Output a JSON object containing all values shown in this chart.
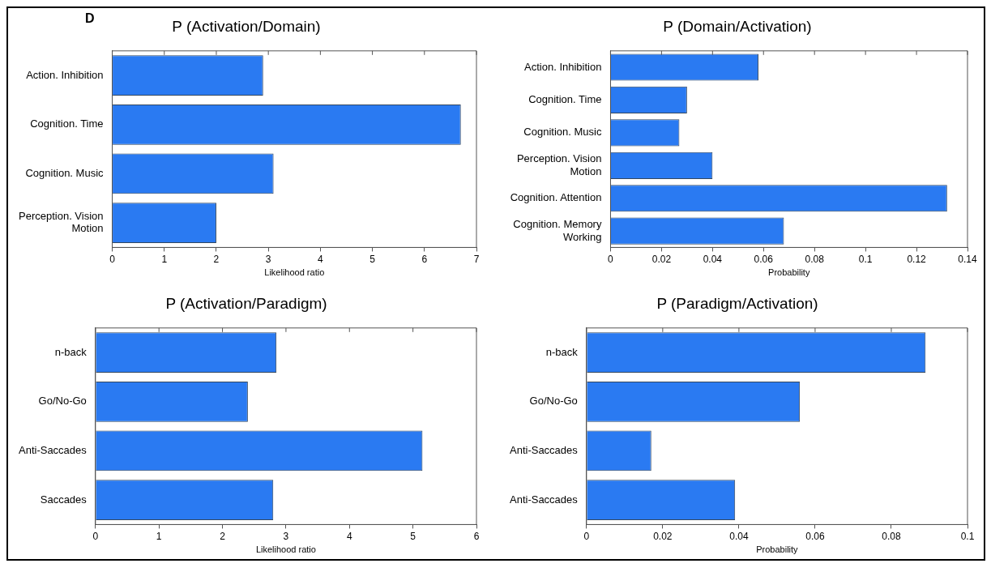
{
  "chart_data": [
    {
      "type": "bar",
      "orientation": "horizontal",
      "title": "P (Activation/Domain)",
      "xlabel": "Likelihood ratio",
      "annotations": [
        "D"
      ],
      "categories": [
        "Action. Inhibition",
        "Cognition. Time",
        "Cognition. Music",
        "Perception. Vision\nMotion"
      ],
      "values": [
        2.9,
        6.7,
        3.1,
        2.0
      ],
      "color": "#2a7af2",
      "xlim": [
        0,
        7
      ],
      "xticks": [
        0,
        1,
        2,
        3,
        4,
        5,
        6,
        7
      ],
      "grid": false,
      "legend": false
    },
    {
      "type": "bar",
      "orientation": "horizontal",
      "title": "P (Domain/Activation)",
      "xlabel": "Probability",
      "categories": [
        "Action. Inhibition",
        "Cognition. Time",
        "Cognition. Music",
        "Perception. Vision\nMotion",
        "Cognition. Attention",
        "Cognition. Memory\nWorking"
      ],
      "values": [
        0.058,
        0.03,
        0.027,
        0.04,
        0.132,
        0.068
      ],
      "color": "#2a7af2",
      "xlim": [
        0,
        0.14
      ],
      "xticks": [
        0,
        0.02,
        0.04,
        0.06,
        0.08,
        0.1,
        0.12,
        0.14
      ],
      "grid": false,
      "legend": false
    },
    {
      "type": "bar",
      "orientation": "horizontal",
      "title": "P (Activation/Paradigm)",
      "xlabel": "Likelihood ratio",
      "categories": [
        "n-back",
        "Go/No-Go",
        "Anti-Saccades",
        "Saccades"
      ],
      "values": [
        2.85,
        2.4,
        5.15,
        2.8
      ],
      "color": "#2a7af2",
      "xlim": [
        0,
        6
      ],
      "xticks": [
        0,
        1,
        2,
        3,
        4,
        5,
        6
      ],
      "grid": false,
      "legend": false
    },
    {
      "type": "bar",
      "orientation": "horizontal",
      "title": "P (Paradigm/Activation)",
      "xlabel": "Probability",
      "categories": [
        "n-back",
        "Go/No-Go",
        "Anti-Saccades",
        "Anti-Saccades"
      ],
      "values": [
        0.089,
        0.056,
        0.017,
        0.039
      ],
      "color": "#2a7af2",
      "xlim": [
        0,
        0.1
      ],
      "xticks": [
        0,
        0.02,
        0.04,
        0.06,
        0.08,
        0.1
      ],
      "grid": false,
      "legend": false
    }
  ]
}
